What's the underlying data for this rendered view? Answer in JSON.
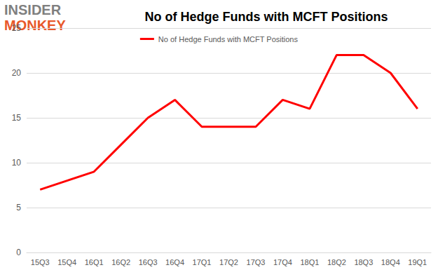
{
  "chart_data": {
    "type": "line",
    "title": "No of Hedge Funds with MCFT Positions",
    "annotations": [
      "INSIDER",
      "MONKEY"
    ],
    "categories": [
      "15Q3",
      "15Q4",
      "16Q1",
      "16Q2",
      "16Q3",
      "16Q4",
      "17Q1",
      "17Q2",
      "17Q3",
      "17Q4",
      "18Q1",
      "18Q2",
      "18Q3",
      "18Q4",
      "19Q1"
    ],
    "series": [
      {
        "name": "No of Hedge Funds with MCFT Positions",
        "color": "#ff0000",
        "values": [
          7,
          8,
          9,
          12,
          15,
          17,
          14,
          14,
          14,
          17,
          16,
          22,
          22,
          20,
          16
        ]
      }
    ],
    "ylim": [
      0,
      25
    ],
    "yticks": [
      0,
      5,
      10,
      15,
      20,
      25
    ],
    "grid": true,
    "legend": "top"
  }
}
